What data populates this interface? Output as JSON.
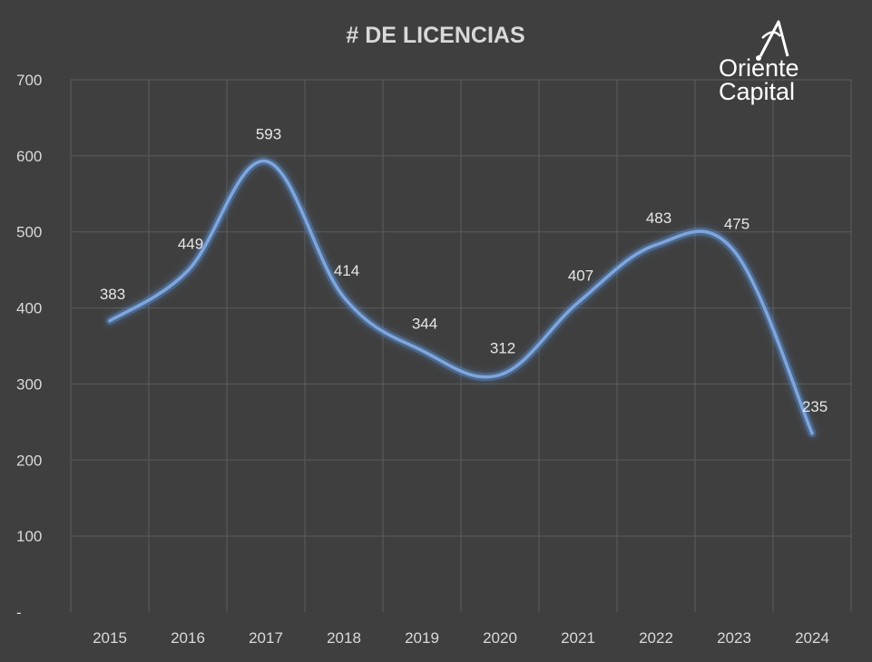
{
  "chart_data": {
    "type": "line",
    "title": "# DE LICENCIAS",
    "categories": [
      "2015",
      "2016",
      "2017",
      "2018",
      "2019",
      "2020",
      "2021",
      "2022",
      "2023",
      "2024"
    ],
    "series": [
      {
        "name": "# de licencias",
        "values": [
          383,
          449,
          593,
          414,
          344,
          312,
          407,
          483,
          475,
          235
        ]
      }
    ],
    "data_labels": [
      "383",
      "449",
      "593",
      "414",
      "344",
      "312",
      "407",
      "483",
      "475",
      "235"
    ],
    "ylim": [
      0,
      700
    ],
    "y_ticks": [
      0,
      100,
      200,
      300,
      400,
      500,
      600,
      700
    ],
    "y_tick_labels": [
      "-",
      "100",
      "200",
      "300",
      "400",
      "500",
      "600",
      "700"
    ],
    "xlabel": "",
    "ylabel": "",
    "grid": true,
    "legend": "none"
  },
  "logo": {
    "line1": "Oriente",
    "line2": "Capital",
    "placement": "top-right"
  },
  "colors": {
    "background": "#3f3f3f",
    "line": "#7fa6dc",
    "glow": "#5b8fd6",
    "grid": "#5c5c5c",
    "text": "#d9d9d9"
  }
}
